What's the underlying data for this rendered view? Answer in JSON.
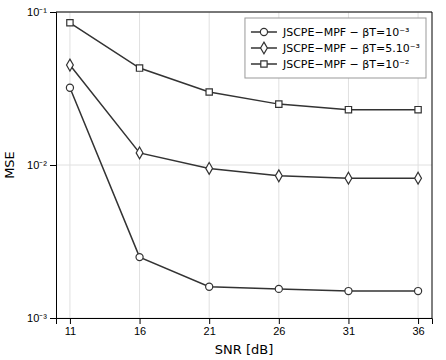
{
  "chart_data": {
    "type": "line",
    "x_label": "SNR [dB]",
    "y_label": "MSE",
    "x": [
      11,
      16,
      21,
      26,
      31,
      36
    ],
    "series": [
      {
        "name": "JSCPE−MPF − βT=10⁻³",
        "marker": "circle",
        "values": [
          0.032,
          0.0025,
          0.0016,
          0.00155,
          0.0015,
          0.0015
        ]
      },
      {
        "name": "JSCPE−MPF − βT=5.10⁻³",
        "marker": "diamond",
        "values": [
          0.045,
          0.012,
          0.0095,
          0.0085,
          0.0082,
          0.0082
        ]
      },
      {
        "name": "JSCPE−MPF − βT=10⁻²",
        "marker": "square",
        "values": [
          0.085,
          0.043,
          0.03,
          0.025,
          0.023,
          0.023
        ]
      }
    ],
    "color": "#333333",
    "xlim": [
      10,
      37
    ],
    "xticks": [
      11,
      16,
      21,
      26,
      31,
      36
    ],
    "ylim": [
      0.001,
      0.1
    ],
    "yticks": [
      {
        "value": 0.001,
        "label": "10⁻³"
      },
      {
        "value": 0.01,
        "label": "10⁻²"
      },
      {
        "value": 0.1,
        "label": "10⁻¹"
      }
    ],
    "log": "y",
    "grid": true,
    "legend": "upper right"
  }
}
